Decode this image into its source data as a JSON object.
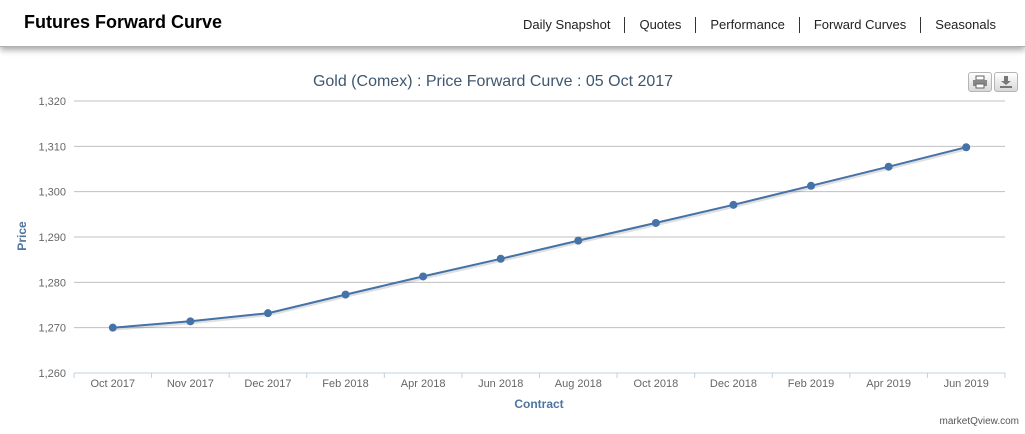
{
  "header": {
    "title": "Futures Forward Curve",
    "nav": [
      "Daily Snapshot",
      "Quotes",
      "Performance",
      "Forward Curves",
      "Seasonals"
    ]
  },
  "chart_data": {
    "type": "line",
    "title": "Gold (Comex) : Price Forward Curve : 05 Oct 2017",
    "xlabel": "Contract",
    "ylabel": "Price",
    "categories": [
      "Oct 2017",
      "Nov 2017",
      "Dec 2017",
      "Feb 2018",
      "Apr 2018",
      "Jun 2018",
      "Aug 2018",
      "Oct 2018",
      "Dec 2018",
      "Feb 2019",
      "Apr 2019",
      "Jun 2019"
    ],
    "values": [
      1270.0,
      1271.4,
      1273.2,
      1277.3,
      1281.3,
      1285.2,
      1289.2,
      1293.1,
      1297.1,
      1301.3,
      1305.5,
      1309.8
    ],
    "ylim": [
      1260,
      1320
    ],
    "yticks": [
      "1,260",
      "1,270",
      "1,280",
      "1,290",
      "1,300",
      "1,310",
      "1,320"
    ],
    "grid": true,
    "legend": "none",
    "line_color": "#4572a7"
  },
  "toolbar": {
    "print_icon": "printer-icon",
    "download_icon": "download-icon"
  },
  "credit": "marketQview.com"
}
